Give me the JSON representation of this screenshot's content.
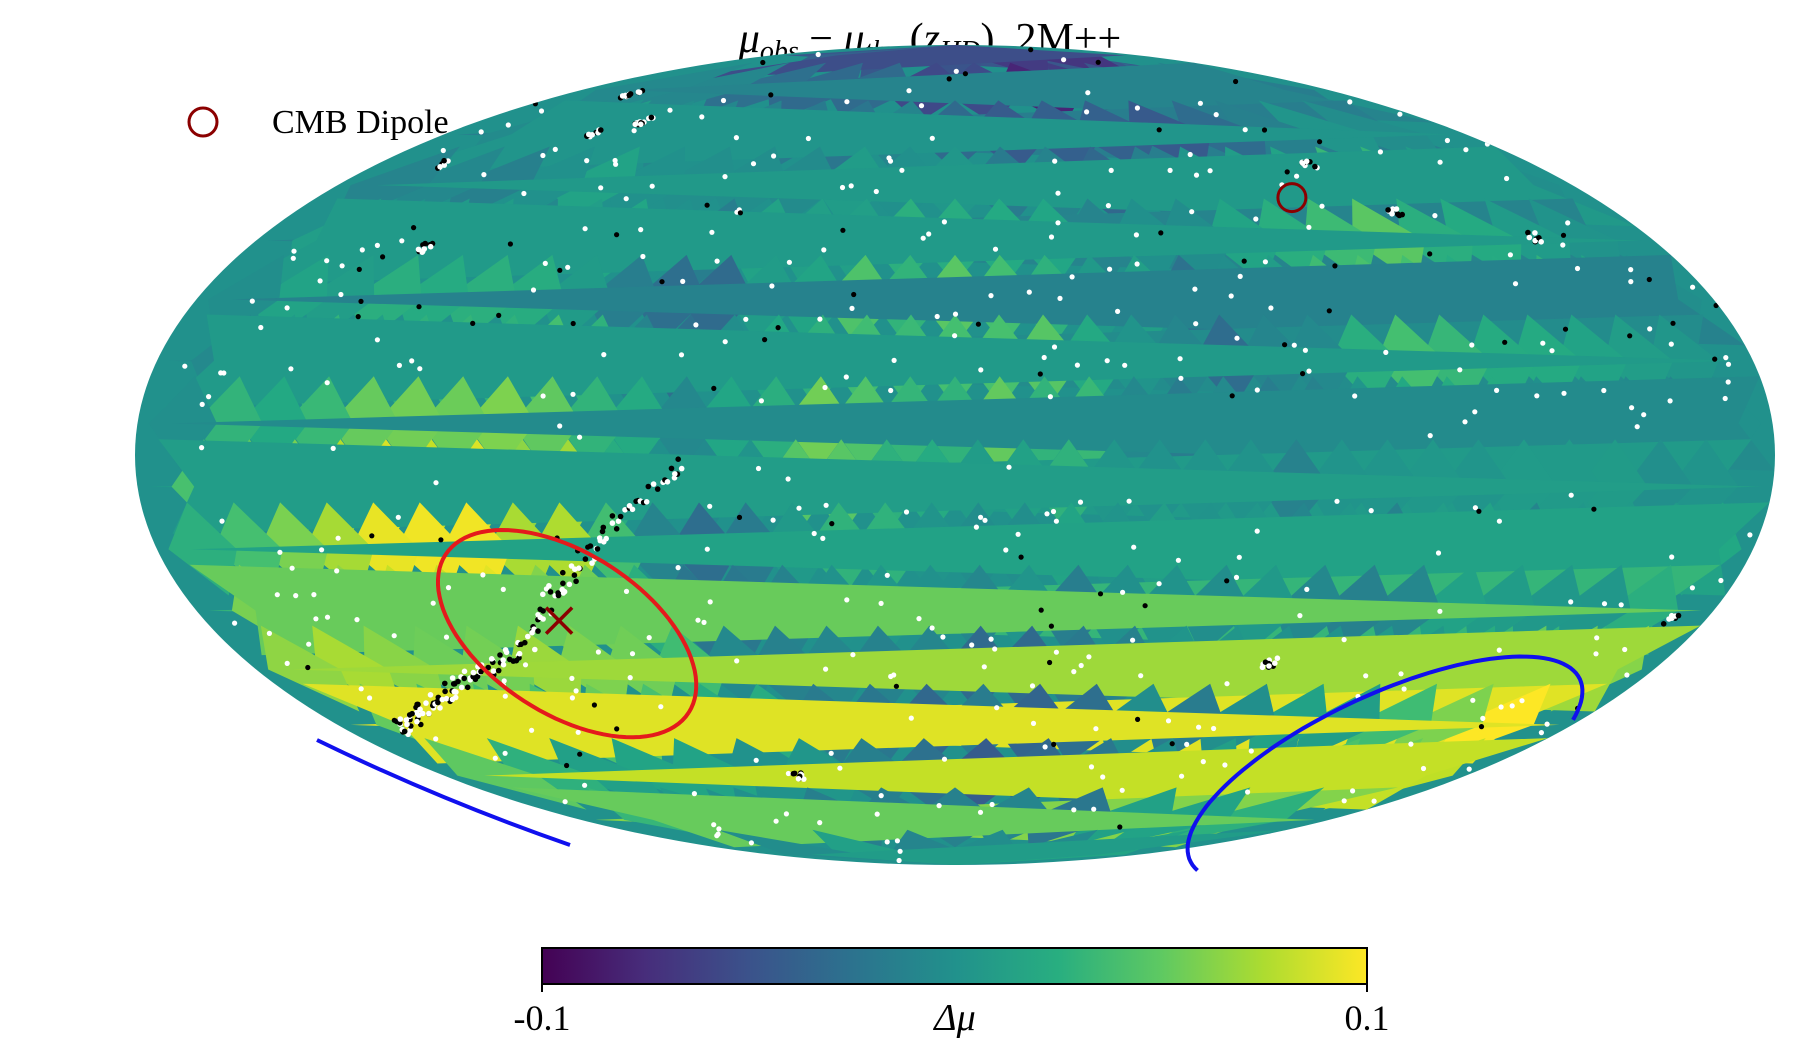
{
  "chart_data": {
    "type": "heatmap",
    "projection": "mollweide",
    "title": {
      "mu": "μ",
      "obs": "obs",
      "minus": " − ",
      "thry": "thry",
      "open": "(",
      "z": "z",
      "hd": "HD",
      "close": "), 2M++"
    },
    "legend": {
      "label": "CMB Dipole",
      "marker": "open-circle",
      "position": "upper-left",
      "color": "#8b0000"
    },
    "colorbar": {
      "label_mu": "Δμ",
      "min_label": "-0.1",
      "max_label": "0.1",
      "vmin": -0.1,
      "vmax": 0.1,
      "colormap": "viridis",
      "orientation": "horizontal",
      "position": "bottom"
    },
    "colors": {
      "red_contour": "#e41a1c",
      "blue_contour": "#1010ee",
      "x_marker": "#8b0000",
      "white_points": "#ffffff",
      "black_points": "#000000"
    },
    "annotations": {
      "cmb_dipole": {
        "lon": -95,
        "lat": 48
      },
      "best_fit_x": {
        "lon": 95,
        "lat": -30
      }
    },
    "hotspots": [
      {
        "lon": 95,
        "lat": -20,
        "value": 0.075,
        "width": 28
      },
      {
        "lon": 140,
        "lat": -25,
        "value": 0.07,
        "width": 22
      },
      {
        "lon": -165,
        "lat": -55,
        "value": 0.1,
        "width": 15
      },
      {
        "lon": -100,
        "lat": 40,
        "value": 0.05,
        "width": 25
      },
      {
        "lon": -20,
        "lat": 20,
        "value": 0.045,
        "width": 20
      },
      {
        "lon": 30,
        "lat": 10,
        "value": 0.04,
        "width": 22
      },
      {
        "lon": 60,
        "lat": -20,
        "value": -0.085,
        "width": 12
      },
      {
        "lon": 60,
        "lat": 20,
        "value": -0.065,
        "width": 12
      },
      {
        "lon": -60,
        "lat": 75,
        "value": -0.09,
        "width": 18
      },
      {
        "lon": 125,
        "lat": -40,
        "value": -0.04,
        "width": 15
      },
      {
        "lon": -60,
        "lat": 20,
        "value": -0.04,
        "width": 20
      },
      {
        "lon": 0,
        "lat": -55,
        "value": -0.035,
        "width": 18
      }
    ]
  }
}
